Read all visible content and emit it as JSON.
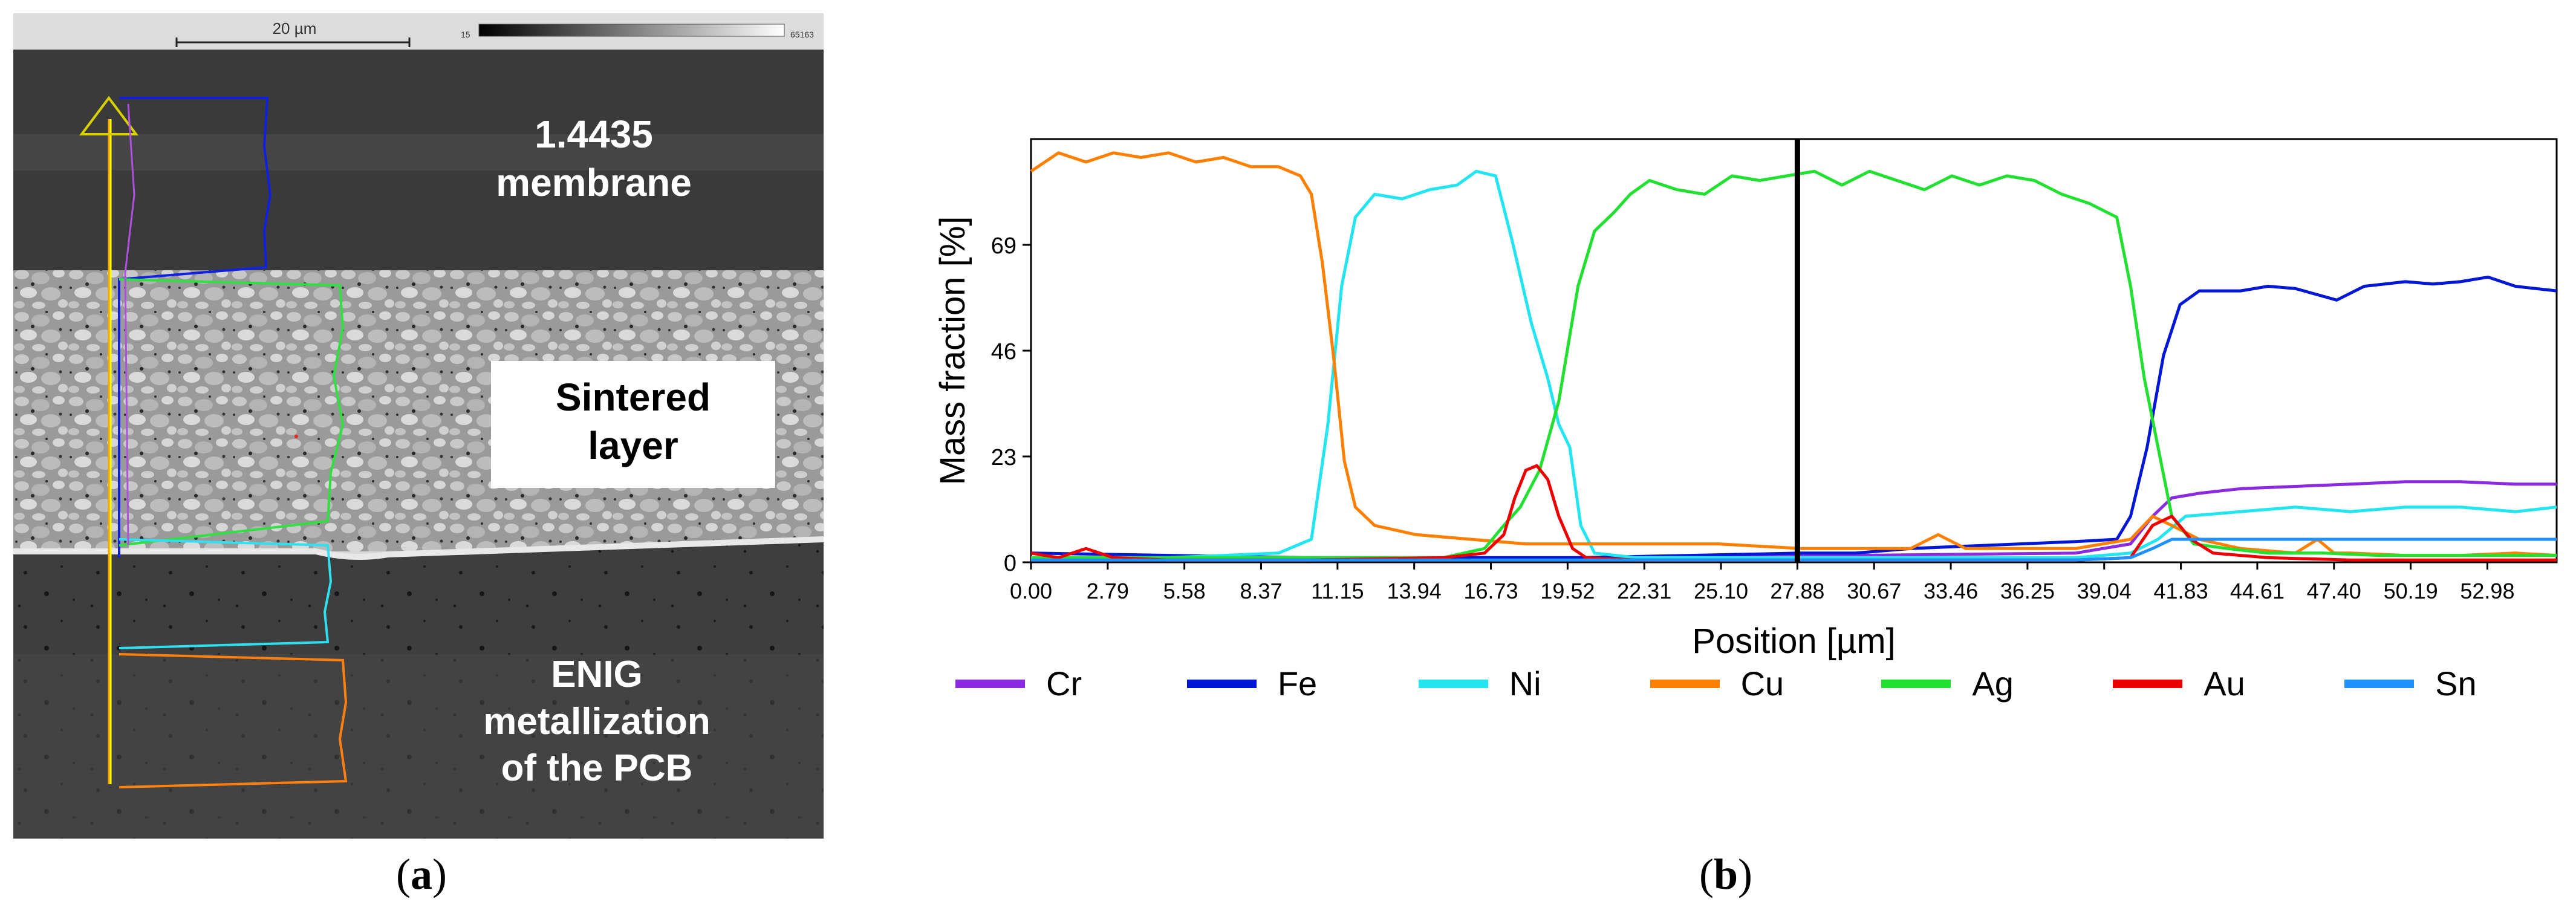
{
  "panel_a": {
    "scale_bar_text": "20 µm",
    "gray_min": "15",
    "gray_max": "65163",
    "label_membrane": "1.4435 membrane",
    "label_membrane_l1": "1.4435",
    "label_membrane_l2": "membrane",
    "label_sinter_l1": "Sintered",
    "label_sinter_l2": "layer",
    "label_enig_l1": "ENIG",
    "label_enig_l2": "metallization",
    "label_enig_l3": "of the PCB"
  },
  "captions": {
    "a_open": "(",
    "a_letter": "a",
    "a_close": ")",
    "b_open": "(",
    "b_letter": "b",
    "b_close": ")"
  },
  "chart_data": {
    "type": "line",
    "title": "",
    "xlabel": "Position [µm]",
    "ylabel": "Mass fraction [%]",
    "xlim": [
      0,
      55.5
    ],
    "ylim": [
      0,
      92
    ],
    "yticks": [
      0,
      23,
      46,
      69
    ],
    "xticks": [
      0.0,
      2.79,
      5.58,
      8.37,
      11.15,
      13.94,
      16.73,
      19.52,
      22.31,
      25.1,
      27.88,
      30.67,
      33.46,
      36.25,
      39.04,
      41.83,
      44.61,
      47.4,
      50.19,
      52.98
    ],
    "xtick_labels": [
      "0.00",
      "2.79",
      "5.58",
      "8.37",
      "11.15",
      "13.94",
      "16.73",
      "19.52",
      "22.31",
      "25.10",
      "27.88",
      "30.67",
      "33.46",
      "36.25",
      "39.04",
      "41.83",
      "44.61",
      "47.40",
      "50.19",
      "52.98"
    ],
    "marker_line_x": 27.88,
    "legend_position": "bottom",
    "series": [
      {
        "name": "Cr",
        "color": "#8a2be2",
        "x": [
          0,
          10,
          20,
          30,
          38,
          40,
          40.8,
          41.5,
          42.5,
          44,
          46,
          48,
          50,
          52,
          54,
          55.5
        ],
        "y": [
          1,
          1,
          1,
          1.5,
          2,
          4,
          10,
          14,
          15,
          16,
          16.5,
          17,
          17.5,
          17.5,
          17,
          17
        ]
      },
      {
        "name": "Fe",
        "color": "#0018d6",
        "x": [
          0,
          10,
          20,
          28,
          30,
          32,
          34,
          36,
          38,
          39.5,
          40,
          40.6,
          41.2,
          41.8,
          42.5,
          44,
          45,
          46,
          47.5,
          48.5,
          50,
          51,
          52,
          53,
          54,
          55.5
        ],
        "y": [
          2,
          1,
          1,
          2,
          2,
          3,
          3.5,
          4,
          4.5,
          5,
          10,
          25,
          45,
          56,
          59,
          59,
          60,
          59.5,
          57,
          60,
          61,
          60.5,
          61,
          62,
          60,
          59
        ]
      },
      {
        "name": "Ni",
        "color": "#22e5f0",
        "x": [
          0,
          5,
          9,
          10.2,
          10.8,
          11.3,
          11.8,
          12.5,
          13.5,
          14.5,
          15.5,
          16.2,
          16.9,
          17.5,
          18.2,
          18.8,
          19.2,
          19.6,
          20.0,
          20.5,
          22,
          26,
          30,
          34,
          38,
          40,
          41,
          42,
          44,
          46,
          48,
          50,
          52,
          54,
          55.5
        ],
        "y": [
          1,
          1,
          2,
          5,
          30,
          60,
          75,
          80,
          79,
          81,
          82,
          85,
          84,
          70,
          52,
          40,
          30,
          25,
          8,
          2,
          1,
          1,
          1,
          1,
          1,
          2,
          5,
          10,
          11,
          12,
          11,
          12,
          12,
          11,
          12
        ]
      },
      {
        "name": "Cu",
        "color": "#ff7f00",
        "x": [
          0,
          1,
          2,
          3,
          4,
          5,
          6,
          7,
          8,
          9,
          9.8,
          10.2,
          10.6,
          11.0,
          11.4,
          11.8,
          12.5,
          14,
          16,
          18,
          20,
          22,
          25,
          28,
          30,
          32,
          33,
          34,
          36,
          38,
          40,
          40.8,
          41.5,
          42.5,
          44,
          46,
          46.8,
          47.4,
          48,
          50,
          52,
          54,
          55.5
        ],
        "y": [
          85,
          89,
          87,
          89,
          88,
          89,
          87,
          88,
          86,
          86,
          84,
          80,
          65,
          45,
          22,
          12,
          8,
          6,
          5,
          4,
          4,
          4,
          4,
          3,
          3,
          3,
          6,
          3,
          3,
          3,
          5,
          10,
          8,
          5,
          3,
          2,
          5,
          2,
          2,
          1.5,
          1.5,
          2,
          1.5
        ]
      },
      {
        "name": "Ag",
        "color": "#22e030",
        "x": [
          0,
          10,
          15,
          16.5,
          17.2,
          17.8,
          18.5,
          19.2,
          19.9,
          20.5,
          21.2,
          21.8,
          22.5,
          23.5,
          24.5,
          25.5,
          26.5,
          27.5,
          28.5,
          29.5,
          30.5,
          31.5,
          32.5,
          33.5,
          34.5,
          35.5,
          36.5,
          37.5,
          38.5,
          39.5,
          40.0,
          40.5,
          41.0,
          41.5,
          42.3,
          43.5,
          45,
          47,
          49,
          51,
          53,
          55.5
        ],
        "y": [
          1,
          1,
          1,
          3,
          8,
          12,
          20,
          35,
          60,
          72,
          76,
          80,
          83,
          81,
          80,
          84,
          83,
          84,
          85,
          82,
          85,
          83,
          81,
          84,
          82,
          84,
          83,
          80,
          78,
          75,
          60,
          40,
          25,
          10,
          4,
          3,
          2,
          2,
          1.5,
          1.5,
          1.5,
          1.5
        ]
      },
      {
        "name": "Au",
        "color": "#ee0000",
        "x": [
          0,
          1,
          2,
          3,
          5,
          10,
          15,
          16.5,
          17.2,
          17.6,
          18,
          18.4,
          18.8,
          19.2,
          19.7,
          20.2,
          22,
          26,
          30,
          34,
          38,
          40,
          40.8,
          41.5,
          42.2,
          43,
          45,
          48,
          52,
          55.5
        ],
        "y": [
          2,
          1,
          3,
          1,
          0.5,
          0.5,
          1,
          2,
          6,
          14,
          20,
          21,
          18,
          10,
          3,
          1,
          0.5,
          0.5,
          0.5,
          0.5,
          0.5,
          1,
          8,
          10,
          5,
          2,
          1,
          0.5,
          0.5,
          0.5
        ]
      },
      {
        "name": "Sn",
        "color": "#1e90ff",
        "x": [
          0,
          10,
          20,
          30,
          38,
          40,
          40.8,
          41.5,
          42.5,
          44,
          48,
          52,
          55.5
        ],
        "y": [
          0.5,
          0.5,
          0.5,
          0.5,
          0.5,
          1,
          3,
          5,
          5,
          5,
          5,
          5,
          5
        ]
      }
    ]
  }
}
